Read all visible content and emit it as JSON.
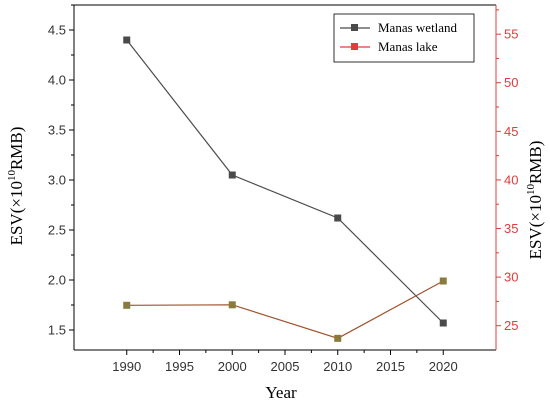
{
  "chart_data": {
    "type": "line",
    "xlabel": "Year",
    "x": [
      1990,
      2000,
      2010,
      2020
    ],
    "xlim": [
      1985,
      2025
    ],
    "xticks": [
      1990,
      1995,
      2000,
      2005,
      2010,
      2015,
      2020
    ],
    "ylabel_left": {
      "prefix": "ESV(×10",
      "sup": "10",
      "suffix": "RMB)"
    },
    "ylabel_right": {
      "prefix": "ESV(×10",
      "sup": "10",
      "suffix": "RMB)"
    },
    "ylim_left": [
      1.3,
      4.75
    ],
    "yticks_left": [
      "1.5",
      "2.0",
      "2.5",
      "3.0",
      "3.5",
      "4.0",
      "4.5"
    ],
    "ylim_right": [
      22.5,
      58
    ],
    "yticks_right": [
      "25",
      "30",
      "35",
      "40",
      "45",
      "50",
      "55"
    ],
    "grid": false,
    "legend_position": "top-right",
    "series": [
      {
        "name": "Manas wetland",
        "axis": "left",
        "color": "#4a4a4a",
        "values": [
          4.4,
          3.05,
          2.62,
          1.57
        ]
      },
      {
        "name": "Manas lake",
        "axis": "right",
        "color": "#a0522d",
        "marker_color": "#8b7a3a",
        "legend_color": "#e03c3c",
        "values": [
          27.1,
          27.15,
          23.7,
          29.6
        ]
      }
    ],
    "right_axis_color": "#e03c3c"
  }
}
